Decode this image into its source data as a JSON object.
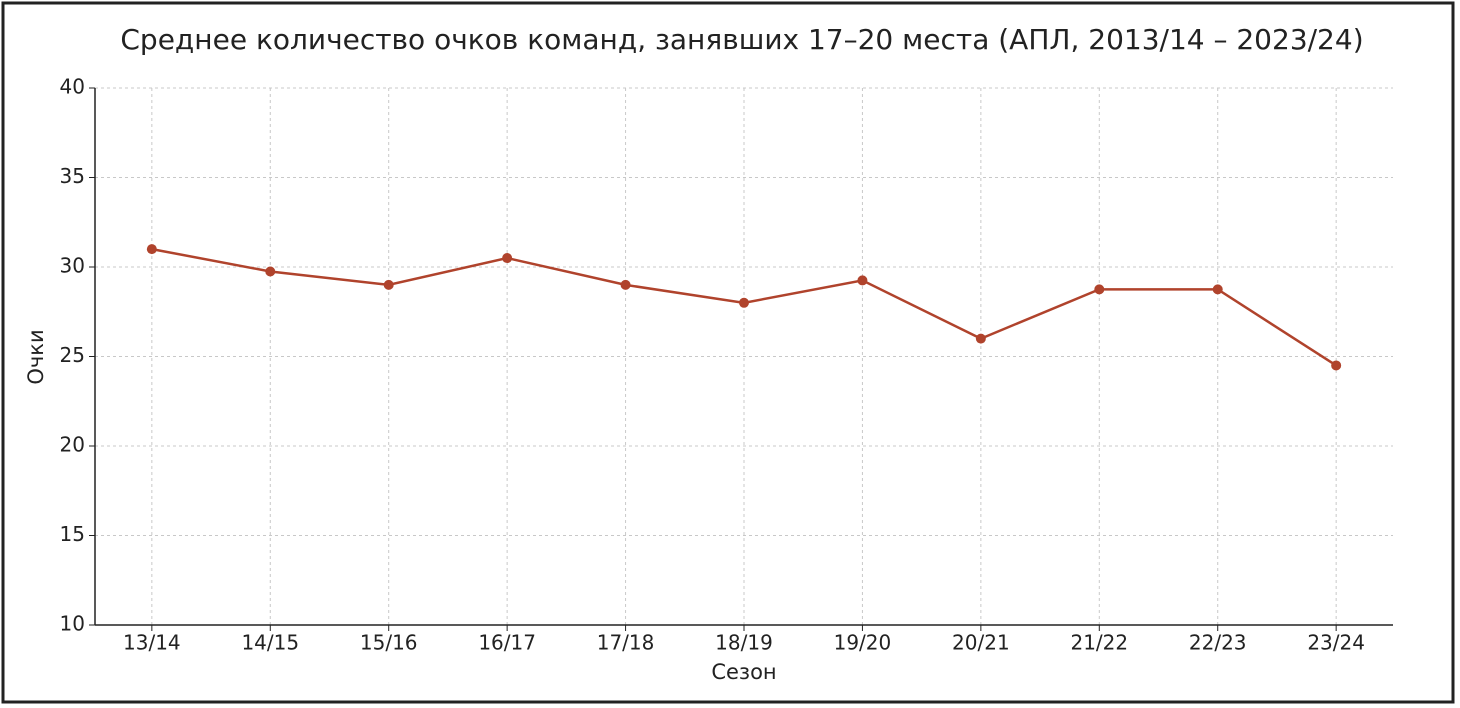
{
  "chart_data": {
    "type": "line",
    "title": "Среднее количество очков команд, занявших 17–20 места (АПЛ, 2013/14 – 2023/24)",
    "x_label": "Сезон",
    "y_label": "Очки",
    "categories": [
      "13/14",
      "14/15",
      "15/16",
      "16/17",
      "17/18",
      "18/19",
      "19/20",
      "20/21",
      "21/22",
      "22/23",
      "23/24"
    ],
    "series": [
      {
        "name": "Очки",
        "color": "#b0432c",
        "values": [
          31,
          29.75,
          29,
          30.5,
          29,
          28,
          29.25,
          26,
          28.75,
          28.75,
          24.5
        ]
      }
    ],
    "ylim": [
      10,
      40
    ],
    "yticks": [
      10,
      15,
      20,
      25,
      30,
      35,
      40
    ],
    "grid": true,
    "legend": false
  }
}
